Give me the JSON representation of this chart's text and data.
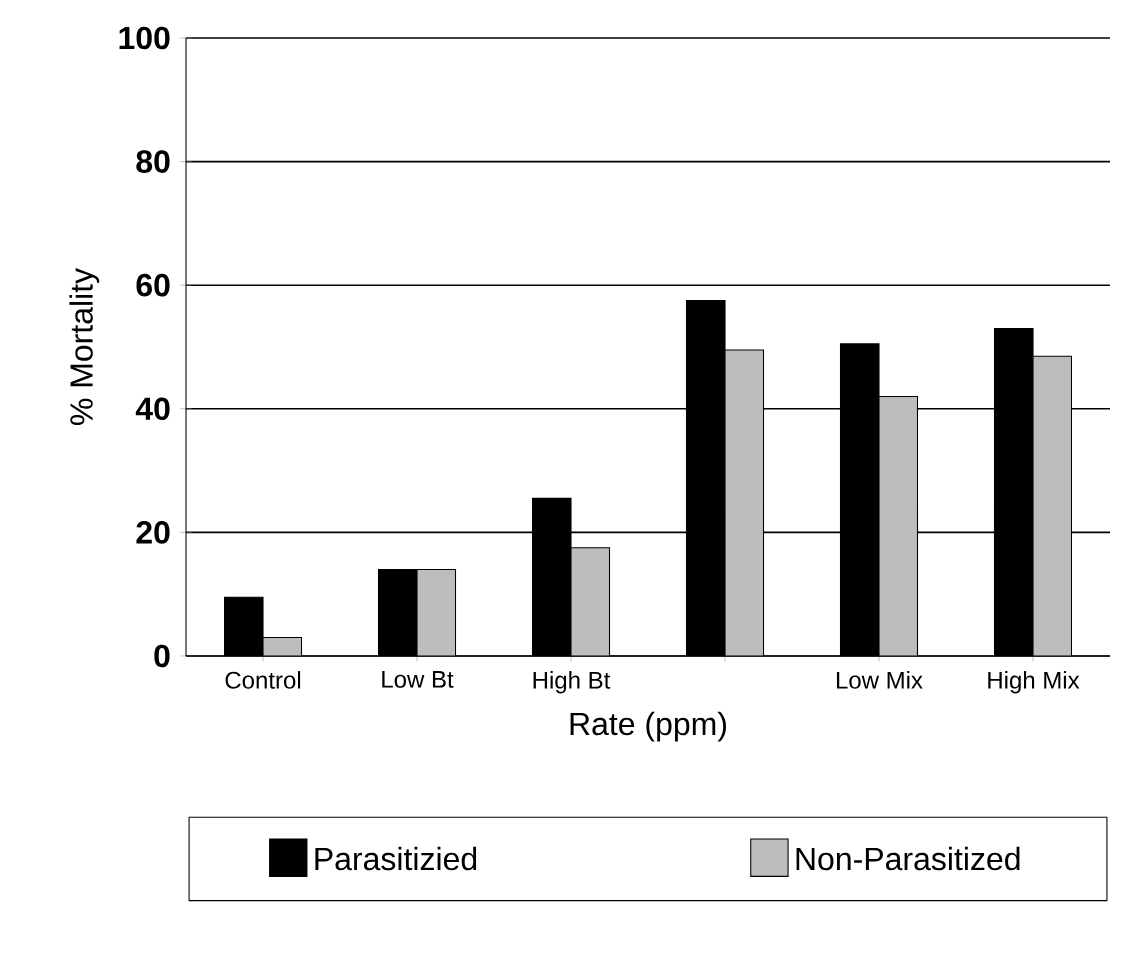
{
  "chart_data": {
    "type": "bar",
    "xlabel": "Rate (ppm)",
    "ylabel": "% Mortality",
    "categories": [
      "Control",
      "Low Bt",
      "High Bt",
      null,
      "Low Mix",
      "High Mix"
    ],
    "series": [
      {
        "name": "Parasitizied",
        "color": "#000000",
        "values": [
          9.5,
          14,
          25.5,
          57.5,
          50.5,
          53
        ]
      },
      {
        "name": "Non-Parasitized",
        "color": "#bdbdbd",
        "values": [
          3,
          14,
          17.5,
          49.5,
          42,
          48.5
        ]
      }
    ],
    "ylim": [
      0,
      100
    ],
    "yticks": [
      0,
      20,
      40,
      60,
      80,
      100
    ],
    "grid": "y",
    "legend": "bottom"
  }
}
